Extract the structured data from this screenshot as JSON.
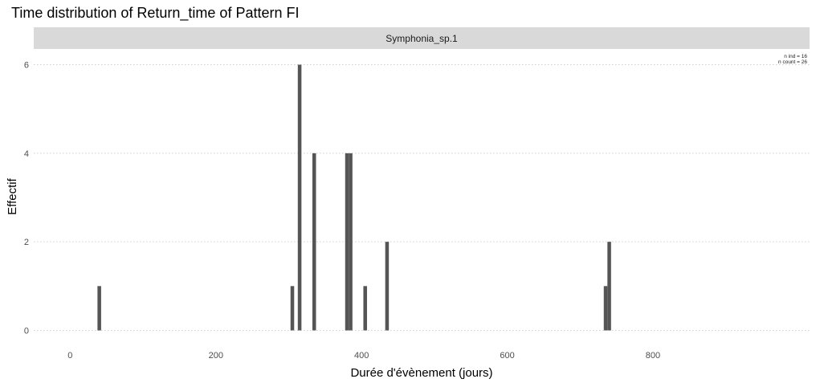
{
  "chart_data": {
    "type": "bar",
    "title": "Time distribution of Return_time of Pattern FI",
    "facet_label": "Symphonia_sp.1",
    "xlabel": "Durée d'évènement (jours)",
    "ylabel": "Effectif",
    "xlim": [
      -50,
      1015
    ],
    "ylim": [
      -0.3,
      6.3
    ],
    "x_ticks": [
      0,
      200,
      400,
      600,
      800
    ],
    "y_ticks": [
      0,
      2,
      4,
      6
    ],
    "grid": "major-y dotted",
    "bar_width": 5,
    "bars": [
      {
        "x": 40,
        "y": 1
      },
      {
        "x": 305,
        "y": 1
      },
      {
        "x": 315,
        "y": 6
      },
      {
        "x": 335,
        "y": 4
      },
      {
        "x": 380,
        "y": 4
      },
      {
        "x": 385,
        "y": 4
      },
      {
        "x": 405,
        "y": 1
      },
      {
        "x": 435,
        "y": 2
      },
      {
        "x": 735,
        "y": 1
      },
      {
        "x": 740,
        "y": 2
      }
    ],
    "annotation": {
      "line1": "n ind =  16",
      "line2": "n count =  26"
    }
  },
  "colors": {
    "bar": "#555555",
    "strip_bg": "#d9d9d9",
    "grid": "#d0d0d0",
    "tick_text": "#4d4d4d"
  }
}
